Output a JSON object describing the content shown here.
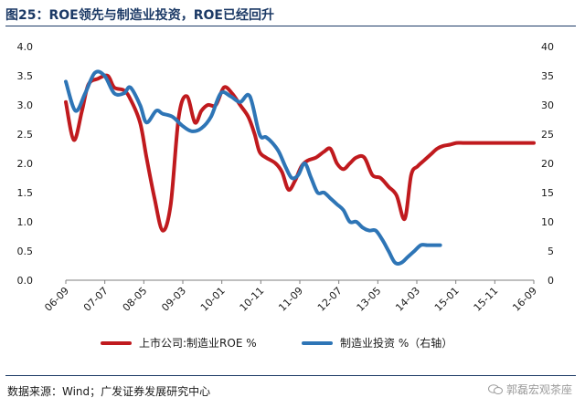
{
  "title": "图25：ROE领先与制造业投资，ROE已经回升",
  "source": "数据来源：Wind；广发证券发展研究中心",
  "watermark": "郭磊宏观茶座",
  "colors": {
    "series_roe": "#c01a1e",
    "series_inv": "#2e75b6",
    "title": "#1c3a66"
  },
  "chart_data": {
    "type": "line",
    "x_tick_labels": [
      "06-09",
      "07-07",
      "08-05",
      "09-03",
      "10-01",
      "10-11",
      "11-09",
      "12-07",
      "13-05",
      "14-03",
      "15-01",
      "15-11",
      "16-09"
    ],
    "y_left": {
      "lim": [
        0,
        4.0
      ],
      "ticks": [
        "0.0",
        "0.5",
        "1.0",
        "1.5",
        "2.0",
        "2.5",
        "3.0",
        "3.5",
        "4.0"
      ]
    },
    "y_right": {
      "lim": [
        0,
        40
      ],
      "ticks": [
        "0",
        "5",
        "10",
        "15",
        "20",
        "25",
        "30",
        "35",
        "40"
      ]
    },
    "series": [
      {
        "name": "上市公司:制造业ROE %",
        "axis": "left",
        "x": [
          0,
          0.5,
          1,
          1.4,
          2,
          2.6,
          3,
          3.6,
          4,
          4.6,
          5,
          5.5,
          6,
          6.5,
          7,
          7.5,
          8,
          8.4,
          8.8,
          9.3,
          9.8,
          10.3,
          10.8,
          11.3,
          11.7,
          12,
          12.4,
          13,
          13.4,
          13.8,
          14.2,
          14.6,
          15,
          15.5,
          16,
          16.4,
          16.8,
          17.2,
          17.6,
          18,
          18.5,
          19,
          19.5,
          20,
          20.5,
          21,
          21.4,
          21.8,
          22.2,
          22.6,
          23,
          23.4,
          23.8,
          24.2,
          24.6,
          25,
          25.4,
          25.8,
          26.2,
          26.6,
          27,
          27.4,
          27.8,
          28.2,
          28.6,
          29
        ],
        "y": [
          3.05,
          2.4,
          2.9,
          3.35,
          3.45,
          3.5,
          3.3,
          3.25,
          3.1,
          2.7,
          2.1,
          1.4,
          0.85,
          1.3,
          2.8,
          3.15,
          2.7,
          2.9,
          3.0,
          3.0,
          3.3,
          3.2,
          3.0,
          2.8,
          2.5,
          2.2,
          2.1,
          2.0,
          1.85,
          1.55,
          1.7,
          1.95,
          2.05,
          2.1,
          2.2,
          2.25,
          2.0,
          1.9,
          2.0,
          2.1,
          2.1,
          1.8,
          1.75,
          1.6,
          1.45,
          1.05,
          1.8,
          1.95,
          2.05,
          2.15,
          2.25,
          2.3,
          2.32,
          2.35,
          2.35,
          2.35,
          2.35,
          2.35,
          2.35,
          2.35,
          2.35,
          2.35,
          2.35,
          2.35,
          2.35,
          2.35
        ]
      },
      {
        "name": "制造业投资 %（右轴）",
        "axis": "right",
        "x": [
          0,
          0.6,
          1.2,
          1.8,
          2.4,
          3,
          3.6,
          4,
          4.6,
          5,
          5.6,
          6,
          6.6,
          7.2,
          7.8,
          8.4,
          9,
          9.6,
          10.2,
          10.8,
          11.4,
          12,
          12.4,
          12.8,
          13.2,
          13.6,
          14,
          14.4,
          14.8,
          15.2,
          15.6,
          16,
          16.4,
          16.8,
          17.2,
          17.6,
          18,
          18.4,
          18.8,
          19.2,
          19.6,
          20,
          20.4,
          20.8,
          21.2,
          21.6,
          22,
          22.4,
          22.8,
          23.2
        ],
        "y": [
          34,
          29,
          32,
          35.5,
          35,
          32,
          32,
          33,
          30,
          27,
          29,
          28.5,
          28,
          26.5,
          25.5,
          26,
          28,
          32,
          31.5,
          30.5,
          31.5,
          25,
          24.5,
          23.5,
          22,
          19.5,
          17.5,
          18,
          20,
          17.5,
          15,
          15,
          14,
          13,
          12,
          10,
          10,
          9,
          8.5,
          8.5,
          7,
          5,
          3,
          3,
          4,
          5,
          6,
          6,
          6,
          6
        ]
      }
    ],
    "legend": "bottom",
    "grid": false
  }
}
